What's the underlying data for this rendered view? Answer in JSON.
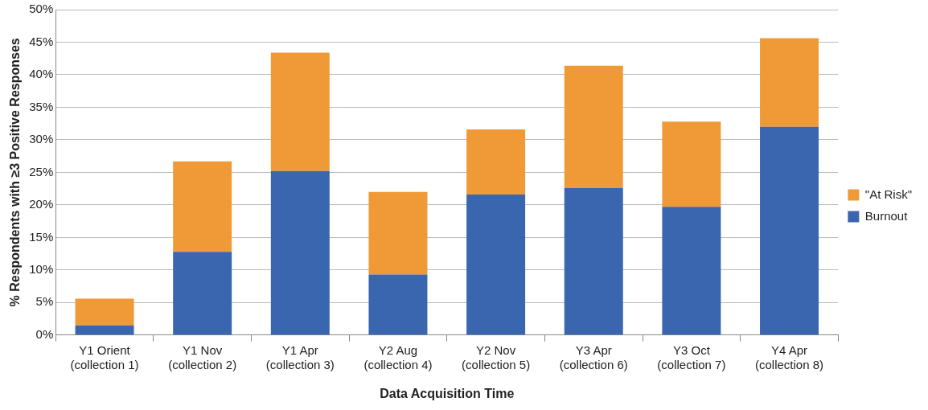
{
  "chart_data": {
    "type": "bar",
    "stacked": true,
    "xlabel": "Data Acquisition Time",
    "ylabel": "% Respondents with ≥3 Positive Responses",
    "categories": [
      "Y1 Orient\n(collection 1)",
      "Y1 Nov\n(collection 2)",
      "Y1 Apr\n(collection 3)",
      "Y2 Aug\n(collection 4)",
      "Y2 Nov\n(collection 5)",
      "Y3 Apr\n(collection 6)",
      "Y3 Oct\n(collection 7)",
      "Y4 Apr\n(collection 8)"
    ],
    "series": [
      {
        "name": "Burnout",
        "color": "#3a66b0",
        "values": [
          1.5,
          12.8,
          25.2,
          9.3,
          21.6,
          22.6,
          19.7,
          32.0
        ]
      },
      {
        "name": "\"At Risk\"",
        "color": "#f09a37",
        "values": [
          4.1,
          13.9,
          18.2,
          12.7,
          10.0,
          18.8,
          13.1,
          13.6
        ]
      }
    ],
    "ylim": [
      0,
      50
    ],
    "yticks": [
      {
        "value": 0,
        "label": "0%"
      },
      {
        "value": 5,
        "label": "5%"
      },
      {
        "value": 10,
        "label": "10%"
      },
      {
        "value": 15,
        "label": "15%"
      },
      {
        "value": 20,
        "label": "20%"
      },
      {
        "value": 25,
        "label": "25%"
      },
      {
        "value": 30,
        "label": "30%"
      },
      {
        "value": 35,
        "label": "35%"
      },
      {
        "value": 40,
        "label": "40%"
      },
      {
        "value": 45,
        "label": "45%"
      },
      {
        "value": 50,
        "label": "50%"
      }
    ],
    "grid": "y",
    "legend": "right"
  }
}
